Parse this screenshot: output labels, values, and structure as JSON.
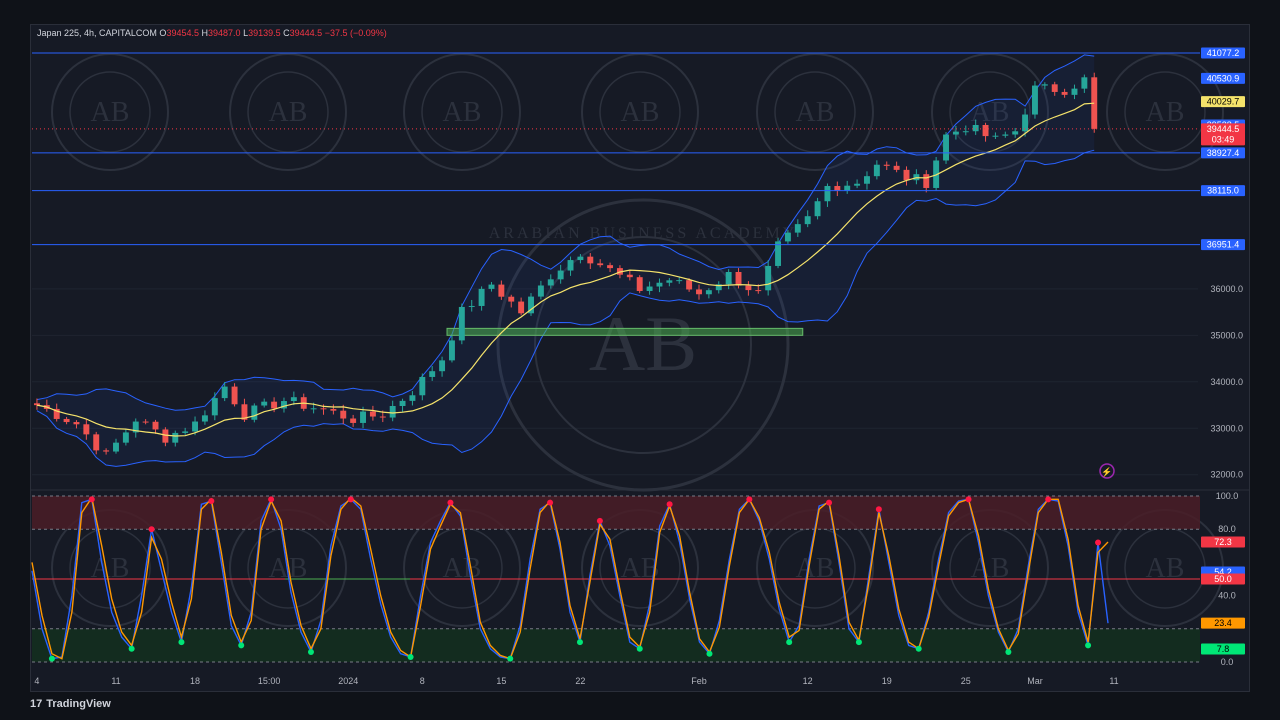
{
  "header": {
    "symbol_line": "Japan 225, 4h, CAPITALCOM",
    "open_label": "O",
    "open": "39454.5",
    "high_label": "H",
    "high": "39487.0",
    "low_label": "L",
    "low": "39139.5",
    "close_label": "C",
    "close": "39444.5",
    "change": "−37.5 (−0.09%)"
  },
  "footer": {
    "brand": "TradingView",
    "logo_glyph": "17"
  },
  "watermark": {
    "text": "ARABIAN BUSINESS ACADEMY",
    "monogram": "AB"
  },
  "colors": {
    "bg": "#161a25",
    "grid": "#1f2430",
    "up": "#26a69a",
    "down": "#ef5350",
    "band": "#2962ff",
    "basis": "#f5e36b",
    "hline": "#2962ff",
    "stoch_k": "#2962ff",
    "stoch_d": "#ff9800",
    "overbought_fill": "#4a1d27",
    "oversold_fill": "#13301f"
  },
  "chart_data": [
    {
      "type": "candlestick",
      "title": "Japan 225, 4h, CAPITALCOM",
      "ylim": [
        31800,
        41400
      ],
      "y_ticks": [
        "32000.0",
        "33000.0",
        "34000.0",
        "35000.0",
        "36000.0"
      ],
      "x_ticks": [
        "4",
        "11",
        "18",
        "15:00",
        "2024",
        "8",
        "15",
        "22",
        "Feb",
        "12",
        "19",
        "25",
        "Mar",
        "11"
      ],
      "x_tick_slots": [
        0.5,
        8.5,
        16.5,
        24,
        32,
        39.5,
        47.5,
        55.5,
        67.5,
        78.5,
        86.5,
        94.5,
        101.5,
        109.5
      ],
      "slot_count": 118,
      "close_path": [
        {
          "i": 0,
          "v": 33500
        },
        {
          "i": 4,
          "v": 33100
        },
        {
          "i": 7,
          "v": 32400
        },
        {
          "i": 10,
          "v": 33200
        },
        {
          "i": 13,
          "v": 32800
        },
        {
          "i": 16,
          "v": 33100
        },
        {
          "i": 19,
          "v": 33900
        },
        {
          "i": 21,
          "v": 33300
        },
        {
          "i": 25,
          "v": 33600
        },
        {
          "i": 29,
          "v": 33400
        },
        {
          "i": 32,
          "v": 33200
        },
        {
          "i": 35,
          "v": 33300
        },
        {
          "i": 38,
          "v": 33800
        },
        {
          "i": 41,
          "v": 34500
        },
        {
          "i": 43,
          "v": 35500
        },
        {
          "i": 46,
          "v": 36100
        },
        {
          "i": 49,
          "v": 35500
        },
        {
          "i": 52,
          "v": 36300
        },
        {
          "i": 55,
          "v": 36800
        },
        {
          "i": 58,
          "v": 36400
        },
        {
          "i": 61,
          "v": 36000
        },
        {
          "i": 64,
          "v": 36200
        },
        {
          "i": 67,
          "v": 35900
        },
        {
          "i": 70,
          "v": 36300
        },
        {
          "i": 73,
          "v": 35900
        },
        {
          "i": 75,
          "v": 36900
        },
        {
          "i": 78,
          "v": 37500
        },
        {
          "i": 80,
          "v": 38200
        },
        {
          "i": 83,
          "v": 38300
        },
        {
          "i": 85,
          "v": 38700
        },
        {
          "i": 88,
          "v": 38400
        },
        {
          "i": 90,
          "v": 38300
        },
        {
          "i": 92,
          "v": 39300
        },
        {
          "i": 94,
          "v": 39500
        },
        {
          "i": 97,
          "v": 39200
        },
        {
          "i": 99,
          "v": 39400
        },
        {
          "i": 101,
          "v": 40300
        },
        {
          "i": 104,
          "v": 40300
        },
        {
          "i": 106,
          "v": 40500
        },
        {
          "i": 107,
          "v": 39444.5
        }
      ],
      "series": [
        {
          "name": "Bollinger Basis",
          "color": "#f5e36b"
        },
        {
          "name": "Upper Band",
          "color": "#2962ff"
        },
        {
          "name": "Lower Band",
          "color": "#2962ff"
        }
      ],
      "horizontal_levels": [
        {
          "label": "41077.2",
          "value": 41077.2
        },
        {
          "label": "38927.4",
          "value": 38927.4
        },
        {
          "label": "38115.0",
          "value": 38115.0
        },
        {
          "label": "36951.4",
          "value": 36951.4
        }
      ],
      "price_badges": [
        {
          "label": "40530.9",
          "value": 40530.9,
          "bg": "#2962ff",
          "fg": "#ffffff"
        },
        {
          "label": "40029.7",
          "value": 40029.7,
          "bg": "#f5e36b",
          "fg": "#000000"
        },
        {
          "label": "39528.5",
          "value": 39528.5,
          "bg": "#2962ff",
          "fg": "#ffffff"
        },
        {
          "label": "39444.5",
          "sub": "03:49",
          "value": 39444.5,
          "bg": "#f23645",
          "fg": "#ffffff"
        }
      ],
      "support_zone": {
        "from_slot": 42,
        "to_slot": 78,
        "low": 35000,
        "high": 35150
      },
      "alert_icon": "lightning-icon"
    },
    {
      "type": "line",
      "title": "Stochastic RSI",
      "ylim": [
        0,
        100
      ],
      "y_ticks": [
        "100.0",
        "80.0",
        "40.0",
        "0.0"
      ],
      "levels": [
        80,
        50,
        20
      ],
      "series": [
        {
          "name": "K",
          "color": "#2962ff",
          "values": [
            55,
            20,
            2,
            3,
            40,
            96,
            98,
            60,
            30,
            15,
            8,
            40,
            80,
            55,
            30,
            12,
            45,
            95,
            97,
            60,
            22,
            10,
            30,
            85,
            98,
            80,
            42,
            18,
            6,
            25,
            70,
            94,
            98,
            92,
            62,
            35,
            15,
            5,
            3,
            40,
            72,
            85,
            96,
            88,
            52,
            20,
            8,
            3,
            2,
            22,
            62,
            92,
            96,
            68,
            30,
            12,
            52,
            85,
            70,
            40,
            12,
            8,
            35,
            82,
            95,
            72,
            38,
            12,
            5,
            25,
            62,
            92,
            98,
            85,
            62,
            32,
            12,
            22,
            62,
            94,
            96,
            60,
            20,
            12,
            52,
            92,
            60,
            28,
            10,
            8,
            30,
            62,
            90,
            97,
            98,
            72,
            40,
            18,
            6,
            20,
            58,
            92,
            98,
            97,
            70,
            30,
            10,
            72,
            23.4
          ]
        },
        {
          "name": "D",
          "color": "#ff9800",
          "values": [
            60,
            28,
            5,
            2,
            30,
            90,
            99,
            70,
            38,
            18,
            10,
            30,
            75,
            62,
            36,
            15,
            38,
            92,
            98,
            66,
            28,
            12,
            25,
            80,
            97,
            85,
            48,
            22,
            8,
            20,
            64,
            92,
            99,
            94,
            68,
            40,
            18,
            7,
            3,
            34,
            68,
            82,
            95,
            90,
            58,
            24,
            10,
            4,
            2,
            18,
            56,
            90,
            97,
            72,
            34,
            14,
            48,
            83,
            74,
            44,
            15,
            9,
            30,
            78,
            94,
            76,
            42,
            14,
            6,
            21,
            58,
            90,
            98,
            87,
            66,
            36,
            15,
            19,
            58,
            92,
            97,
            64,
            24,
            13,
            48,
            90,
            64,
            32,
            12,
            8,
            27,
            58,
            88,
            96,
            98,
            76,
            44,
            20,
            7,
            17,
            54,
            90,
            98,
            98,
            74,
            34,
            12,
            66,
            72.3
          ]
        }
      ],
      "value_badges": [
        {
          "label": "72.3",
          "value": 72.3,
          "bg": "#f23645",
          "fg": "#ffffff"
        },
        {
          "label": "54.2",
          "value": 54.2,
          "bg": "#2962ff",
          "fg": "#ffffff"
        },
        {
          "label": "50.0",
          "value": 50.0,
          "bg": "#f23645",
          "fg": "#ffffff"
        },
        {
          "label": "23.4",
          "value": 23.4,
          "bg": "#ff9800",
          "fg": "#000000"
        },
        {
          "label": "7.8",
          "value": 7.8,
          "bg": "#00e676",
          "fg": "#000000"
        }
      ]
    }
  ]
}
